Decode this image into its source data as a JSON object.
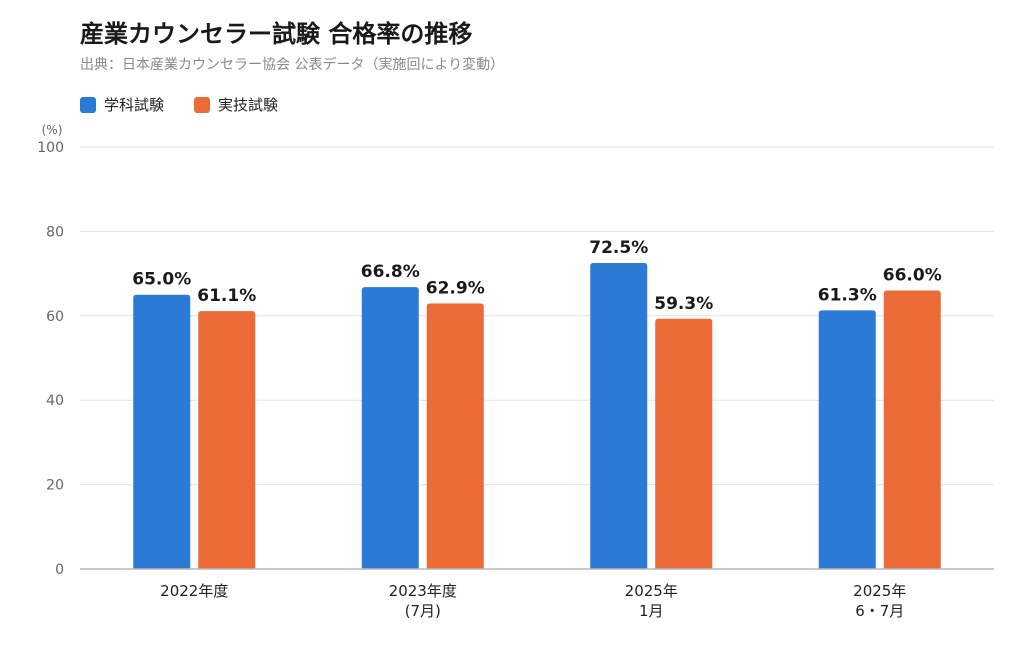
{
  "chart_data": {
    "type": "bar",
    "title": "産業カウンセラー試験 合格率の推移",
    "subtitle": "出典：日本産業カウンセラー協会 公表データ（実施回により変動）",
    "ylabel": "(%)",
    "ylim": [
      0,
      100
    ],
    "yticks": [
      0,
      20,
      40,
      60,
      80,
      100
    ],
    "grid": true,
    "legend_position": "top-left",
    "categories": [
      [
        "2022年度"
      ],
      [
        "2023年度",
        "(7月)"
      ],
      [
        "2025年",
        "1月"
      ],
      [
        "2025年",
        "6・7月"
      ]
    ],
    "series": [
      {
        "name": "学科試験",
        "color": "#2a7ad6",
        "values": [
          65.0,
          66.8,
          72.5,
          61.3
        ],
        "labels": [
          "65.0%",
          "66.8%",
          "72.5%",
          "61.3%"
        ]
      },
      {
        "name": "実技試験",
        "color": "#ec6a35",
        "values": [
          61.1,
          62.9,
          59.3,
          66.0
        ],
        "labels": [
          "61.1%",
          "62.9%",
          "59.3%",
          "66.0%"
        ]
      }
    ]
  }
}
